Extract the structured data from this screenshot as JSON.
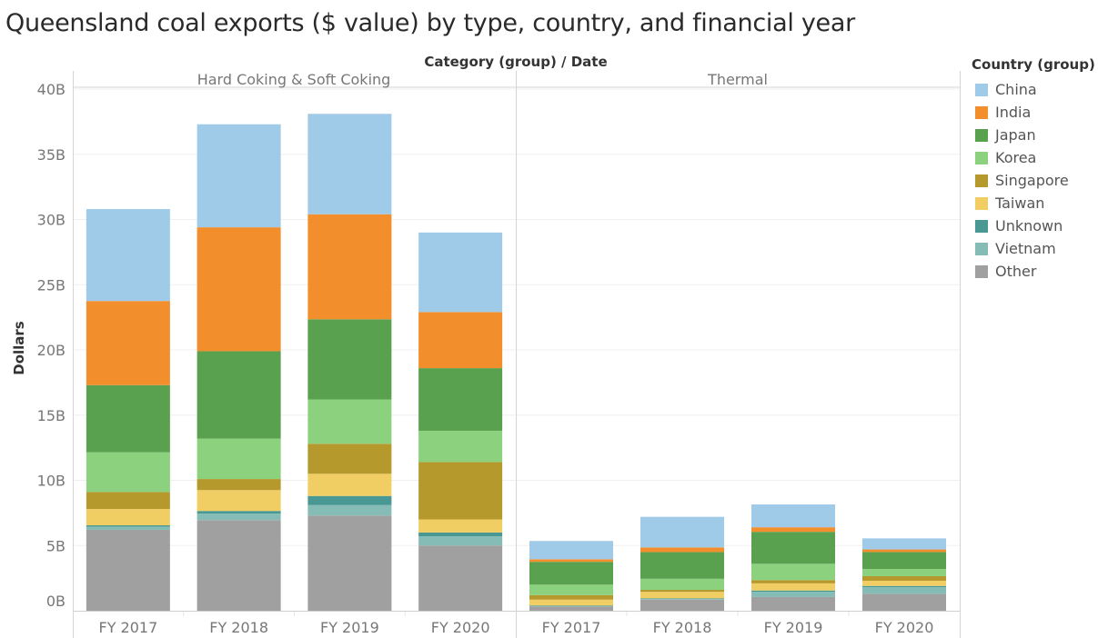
{
  "title": "Queensland coal exports ($ value) by type, country, and financial year",
  "header_label": "Category (group)  /  Date",
  "legend": {
    "title": "Country (group)",
    "items": [
      {
        "label": "China",
        "color": "#a0cbe8"
      },
      {
        "label": "India",
        "color": "#f28e2b"
      },
      {
        "label": "Japan",
        "color": "#59a14f"
      },
      {
        "label": "Korea",
        "color": "#8cd17d"
      },
      {
        "label": "Singapore",
        "color": "#b6992d"
      },
      {
        "label": "Taiwan",
        "color": "#f1ce63"
      },
      {
        "label": "Unknown",
        "color": "#499894"
      },
      {
        "label": "Vietnam",
        "color": "#86bcb6"
      },
      {
        "label": "Other",
        "color": "#a0a0a0"
      }
    ]
  },
  "chart_data": {
    "type": "bar",
    "stacked": true,
    "title": "Queensland coal exports ($ value) by type, country, and financial year",
    "xlabel": "Category (group) / Date",
    "ylabel": "Dollars",
    "ylim": [
      0,
      40
    ],
    "y_unit": "B",
    "yticks": [
      "0B",
      "5B",
      "10B",
      "15B",
      "20B",
      "25B",
      "30B",
      "35B",
      "40B"
    ],
    "ytick_values": [
      0,
      5,
      10,
      15,
      20,
      25,
      30,
      35,
      40
    ],
    "grid": true,
    "legend_position": "right",
    "stack_order": [
      "Other",
      "Vietnam",
      "Unknown",
      "Taiwan",
      "Singapore",
      "Korea",
      "Japan",
      "India",
      "China"
    ],
    "panels": [
      {
        "name": "Hard Coking & Soft Coking",
        "categories": [
          "FY 2017",
          "FY 2018",
          "FY 2019",
          "FY 2020"
        ],
        "series": [
          {
            "name": "China",
            "values": [
              7.05,
              7.9,
              7.7,
              6.1
            ]
          },
          {
            "name": "India",
            "values": [
              6.45,
              9.5,
              8.05,
              4.3
            ]
          },
          {
            "name": "Japan",
            "values": [
              5.15,
              6.7,
              6.15,
              4.8
            ]
          },
          {
            "name": "Korea",
            "values": [
              3.05,
              3.1,
              3.4,
              2.4
            ]
          },
          {
            "name": "Singapore",
            "values": [
              1.3,
              0.85,
              2.3,
              4.4
            ]
          },
          {
            "name": "Taiwan",
            "values": [
              1.25,
              1.6,
              1.7,
              1.0
            ]
          },
          {
            "name": "Unknown",
            "values": [
              0.1,
              0.2,
              0.7,
              0.3
            ]
          },
          {
            "name": "Vietnam",
            "values": [
              0.25,
              0.5,
              0.8,
              0.7
            ]
          },
          {
            "name": "Other",
            "values": [
              6.2,
              6.95,
              7.3,
              5.0
            ]
          }
        ]
      },
      {
        "name": "Thermal",
        "categories": [
          "FY 2017",
          "FY 2018",
          "FY 2019",
          "FY 2020"
        ],
        "series": [
          {
            "name": "China",
            "values": [
              1.4,
              2.35,
              1.75,
              0.85
            ]
          },
          {
            "name": "India",
            "values": [
              0.2,
              0.35,
              0.35,
              0.2
            ]
          },
          {
            "name": "Japan",
            "values": [
              1.75,
              2.05,
              2.45,
              1.3
            ]
          },
          {
            "name": "Korea",
            "values": [
              0.8,
              0.85,
              1.25,
              0.55
            ]
          },
          {
            "name": "Singapore",
            "values": [
              0.35,
              0.15,
              0.25,
              0.35
            ]
          },
          {
            "name": "Taiwan",
            "values": [
              0.45,
              0.5,
              0.55,
              0.4
            ]
          },
          {
            "name": "Unknown",
            "values": [
              0.05,
              0.05,
              0.1,
              0.1
            ]
          },
          {
            "name": "Vietnam",
            "values": [
              0.03,
              0.05,
              0.4,
              0.5
            ]
          },
          {
            "name": "Other",
            "values": [
              0.32,
              0.85,
              1.05,
              1.3
            ]
          }
        ]
      }
    ]
  }
}
